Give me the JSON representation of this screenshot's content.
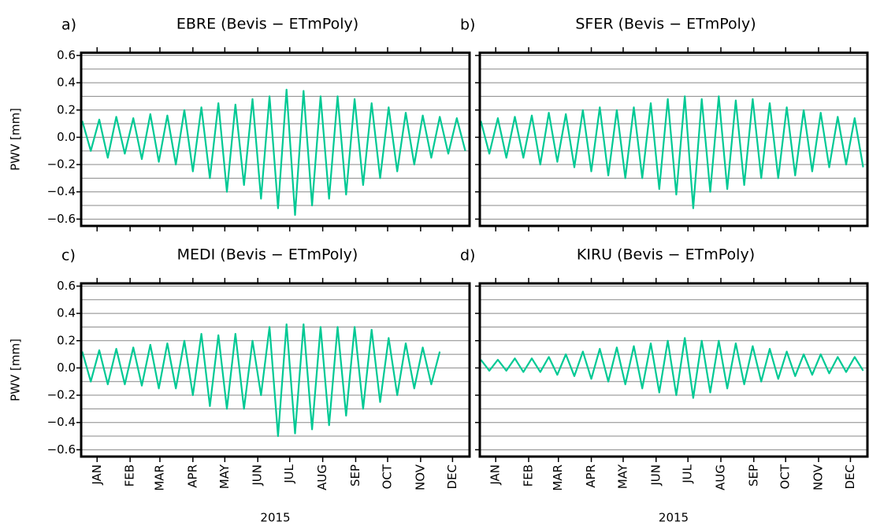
{
  "chart_data": [
    {
      "type": "line",
      "panel_label": "a)",
      "title": "EBRE (Bevis − ETmPoly)",
      "ylabel": "PWV [mm]",
      "x": [
        1,
        9,
        17,
        25,
        33,
        41,
        49,
        57,
        65,
        73,
        81,
        89,
        97,
        105,
        113,
        121,
        129,
        137,
        145,
        153,
        161,
        169,
        177,
        185,
        193,
        201,
        209,
        217,
        225,
        233,
        241,
        249,
        257,
        265,
        273,
        281,
        289,
        297,
        305,
        313,
        321,
        329,
        337,
        345,
        353,
        361
      ],
      "series": [
        {
          "color": "#00c994",
          "values": [
            0.12,
            -0.1,
            0.13,
            -0.15,
            0.15,
            -0.12,
            0.14,
            -0.16,
            0.17,
            -0.18,
            0.16,
            -0.2,
            0.2,
            -0.25,
            0.22,
            -0.3,
            0.25,
            -0.4,
            0.24,
            -0.35,
            0.28,
            -0.45,
            0.3,
            -0.52,
            0.35,
            -0.57,
            0.34,
            -0.5,
            0.3,
            -0.45,
            0.3,
            -0.42,
            0.28,
            -0.35,
            0.25,
            -0.3,
            0.22,
            -0.25,
            0.18,
            -0.2,
            0.16,
            -0.15,
            0.15,
            -0.12,
            0.14,
            -0.1
          ]
        }
      ],
      "xlim": [
        0,
        365
      ],
      "xticks": [
        15,
        46,
        74,
        105,
        135,
        166,
        196,
        227,
        258,
        288,
        319,
        349
      ],
      "show_xtick_labels": false,
      "ylim": [
        -0.65,
        0.62
      ],
      "yticks": [
        {
          "value": -0.6,
          "label": "−0.6"
        },
        {
          "value": -0.4,
          "label": "−0.4"
        },
        {
          "value": -0.2,
          "label": "−0.2"
        },
        {
          "value": 0,
          "label": "0.0"
        },
        0.2,
        0.4,
        0.6
      ],
      "show_ytick_labels": true,
      "ygrid": [
        -0.6,
        -0.5,
        -0.4,
        -0.3,
        -0.2,
        -0.1,
        0,
        0.1,
        0.2,
        0.3,
        0.4,
        0.5,
        0.6
      ]
    },
    {
      "type": "line",
      "panel_label": "b)",
      "title": "SFER (Bevis − ETmPoly)",
      "x": [
        1,
        9,
        17,
        25,
        33,
        41,
        49,
        57,
        65,
        73,
        81,
        89,
        97,
        105,
        113,
        121,
        129,
        137,
        145,
        153,
        161,
        169,
        177,
        185,
        193,
        201,
        209,
        217,
        225,
        233,
        241,
        249,
        257,
        265,
        273,
        281,
        289,
        297,
        305,
        313,
        321,
        329,
        337,
        345,
        353,
        361
      ],
      "series": [
        {
          "color": "#00c994",
          "values": [
            0.12,
            -0.12,
            0.14,
            -0.15,
            0.15,
            -0.15,
            0.16,
            -0.2,
            0.18,
            -0.18,
            0.17,
            -0.22,
            0.2,
            -0.25,
            0.22,
            -0.28,
            0.2,
            -0.3,
            0.22,
            -0.3,
            0.25,
            -0.38,
            0.28,
            -0.42,
            0.3,
            -0.52,
            0.28,
            -0.4,
            0.3,
            -0.38,
            0.27,
            -0.35,
            0.28,
            -0.3,
            0.25,
            -0.3,
            0.22,
            -0.28,
            0.2,
            -0.25,
            0.18,
            -0.22,
            0.15,
            -0.2,
            0.14,
            -0.22
          ]
        }
      ],
      "xlim": [
        0,
        365
      ],
      "xticks": [
        15,
        46,
        74,
        105,
        135,
        166,
        196,
        227,
        258,
        288,
        319,
        349
      ],
      "show_xtick_labels": false,
      "ylim": [
        -0.65,
        0.62
      ],
      "yticks": [
        -0.6,
        -0.4,
        -0.2,
        0,
        0.2,
        0.4,
        0.6
      ],
      "show_ytick_labels": false,
      "ygrid": [
        -0.6,
        -0.5,
        -0.4,
        -0.3,
        -0.2,
        -0.1,
        0,
        0.1,
        0.2,
        0.3,
        0.4,
        0.5,
        0.6
      ]
    },
    {
      "type": "line",
      "panel_label": "c)",
      "title": "MEDI (Bevis − ETmPoly)",
      "ylabel": "PWV [mm]",
      "xlabel": "2015",
      "x": [
        1,
        9,
        17,
        25,
        33,
        41,
        49,
        57,
        65,
        73,
        81,
        89,
        97,
        105,
        113,
        121,
        129,
        137,
        145,
        153,
        161,
        169,
        177,
        185,
        193,
        201,
        209,
        217,
        225,
        233,
        241,
        249,
        257,
        265,
        273,
        281,
        289,
        297,
        305,
        313,
        321,
        329,
        337,
        345,
        353,
        361
      ],
      "series": [
        {
          "color": "#00c994",
          "values": [
            0.12,
            -0.1,
            0.13,
            -0.12,
            0.14,
            -0.12,
            0.15,
            -0.13,
            0.17,
            -0.15,
            0.18,
            -0.15,
            0.2,
            -0.2,
            0.25,
            -0.28,
            0.24,
            -0.3,
            0.25,
            -0.3,
            0.2,
            -0.2,
            0.3,
            -0.5,
            0.32,
            -0.48,
            0.32,
            -0.45,
            0.3,
            -0.42,
            0.3,
            -0.35,
            0.3,
            -0.3,
            0.28,
            -0.25,
            0.22,
            -0.2,
            0.18,
            -0.15,
            0.15,
            -0.12,
            0.12,
            null,
            null,
            null
          ]
        }
      ],
      "xlim": [
        0,
        365
      ],
      "xticks": [
        {
          "value": 15,
          "label": "JAN"
        },
        {
          "value": 46,
          "label": "FEB"
        },
        {
          "value": 74,
          "label": "MAR"
        },
        {
          "value": 105,
          "label": "APR"
        },
        {
          "value": 135,
          "label": "MAY"
        },
        {
          "value": 166,
          "label": "JUN"
        },
        {
          "value": 196,
          "label": "JUL"
        },
        {
          "value": 227,
          "label": "AUG"
        },
        {
          "value": 258,
          "label": "SEP"
        },
        {
          "value": 288,
          "label": "OCT"
        },
        {
          "value": 319,
          "label": "NOV"
        },
        {
          "value": 349,
          "label": "DEC"
        }
      ],
      "show_xtick_labels": true,
      "ylim": [
        -0.65,
        0.62
      ],
      "yticks": [
        {
          "value": -0.6,
          "label": "−0.6"
        },
        {
          "value": -0.4,
          "label": "−0.4"
        },
        {
          "value": -0.2,
          "label": "−0.2"
        },
        {
          "value": 0,
          "label": "0.0"
        },
        0.2,
        0.4,
        0.6
      ],
      "show_ytick_labels": true,
      "ygrid": [
        -0.6,
        -0.5,
        -0.4,
        -0.3,
        -0.2,
        -0.1,
        0,
        0.1,
        0.2,
        0.3,
        0.4,
        0.5,
        0.6
      ]
    },
    {
      "type": "line",
      "panel_label": "d)",
      "title": "KIRU (Bevis − ETmPoly)",
      "xlabel": "2015",
      "x": [
        1,
        9,
        17,
        25,
        33,
        41,
        49,
        57,
        65,
        73,
        81,
        89,
        97,
        105,
        113,
        121,
        129,
        137,
        145,
        153,
        161,
        169,
        177,
        185,
        193,
        201,
        209,
        217,
        225,
        233,
        241,
        249,
        257,
        265,
        273,
        281,
        289,
        297,
        305,
        313,
        321,
        329,
        337,
        345,
        353,
        361
      ],
      "series": [
        {
          "color": "#00c994",
          "values": [
            0.06,
            -0.02,
            0.06,
            -0.02,
            0.07,
            -0.03,
            0.07,
            -0.03,
            0.08,
            -0.05,
            0.1,
            -0.06,
            0.12,
            -0.08,
            0.14,
            -0.1,
            0.15,
            -0.12,
            0.16,
            -0.15,
            0.18,
            -0.18,
            0.2,
            -0.2,
            0.22,
            -0.22,
            0.2,
            -0.18,
            0.2,
            -0.15,
            0.18,
            -0.12,
            0.16,
            -0.1,
            0.14,
            -0.08,
            0.12,
            -0.06,
            0.1,
            -0.05,
            0.1,
            -0.04,
            0.08,
            -0.03,
            0.08,
            -0.02
          ]
        }
      ],
      "xlim": [
        0,
        365
      ],
      "xticks": [
        {
          "value": 15,
          "label": "JAN"
        },
        {
          "value": 46,
          "label": "FEB"
        },
        {
          "value": 74,
          "label": "MAR"
        },
        {
          "value": 105,
          "label": "APR"
        },
        {
          "value": 135,
          "label": "MAY"
        },
        {
          "value": 166,
          "label": "JUN"
        },
        {
          "value": 196,
          "label": "JUL"
        },
        {
          "value": 227,
          "label": "AUG"
        },
        {
          "value": 258,
          "label": "SEP"
        },
        {
          "value": 288,
          "label": "OCT"
        },
        {
          "value": 319,
          "label": "NOV"
        },
        {
          "value": 349,
          "label": "DEC"
        }
      ],
      "show_xtick_labels": true,
      "ylim": [
        -0.65,
        0.62
      ],
      "yticks": [
        -0.6,
        -0.4,
        -0.2,
        0,
        0.2,
        0.4,
        0.6
      ],
      "show_ytick_labels": false,
      "ygrid": [
        -0.6,
        -0.5,
        -0.4,
        -0.3,
        -0.2,
        -0.1,
        0,
        0.1,
        0.2,
        0.3,
        0.4,
        0.5,
        0.6
      ]
    }
  ]
}
